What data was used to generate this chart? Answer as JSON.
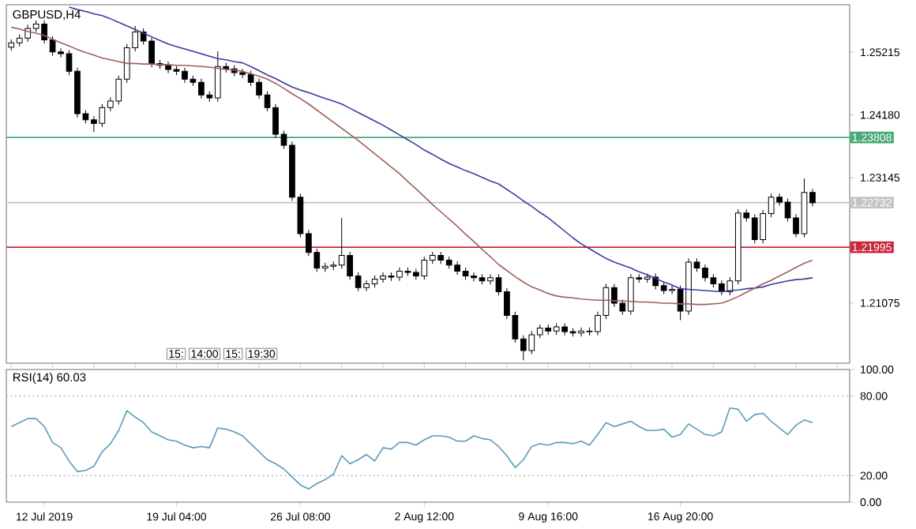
{
  "chart_data": [
    {
      "type": "candlestick",
      "title": "GBPUSD,H4",
      "ylim": [
        1.2008,
        1.26
      ],
      "yticks": [
        1.25215,
        {
          "value": 1.2418,
          "label": "1.24180"
        },
        1.23145,
        1.21075
      ],
      "tick_labels": "y",
      "categories": [
        null,
        null,
        null,
        null,
        null,
        null,
        null,
        null,
        null,
        null,
        null,
        null,
        null,
        null,
        null,
        null,
        null,
        null,
        null,
        null,
        null,
        null,
        null,
        null,
        null,
        null,
        null,
        null,
        null,
        null,
        null,
        null,
        null,
        null,
        null,
        null,
        null,
        null,
        null,
        null,
        null,
        null,
        null,
        null,
        null,
        null,
        null,
        null,
        null,
        null,
        null,
        null,
        null,
        null,
        null,
        null,
        null,
        null,
        null,
        null,
        null,
        null,
        null,
        null,
        null,
        null,
        null,
        null,
        null,
        null,
        null,
        null,
        null,
        null,
        null,
        null,
        null,
        null,
        null,
        null,
        null,
        null,
        null,
        null,
        null,
        null,
        null,
        null,
        null,
        null,
        null,
        null,
        null,
        null,
        null,
        null,
        null,
        null
      ],
      "series": [
        {
          "color": "#000000",
          "ohlc": [
            [
              1.253,
              1.2543,
              1.2524,
              1.2537
            ],
            [
              1.2537,
              1.2551,
              1.2531,
              1.2545
            ],
            [
              1.2545,
              1.2567,
              1.2539,
              1.2561
            ],
            [
              1.2561,
              1.2574,
              1.2555,
              1.2568
            ],
            [
              1.2568,
              1.2574,
              1.2536,
              1.2542
            ],
            [
              1.2542,
              1.2548,
              1.2516,
              1.2522
            ],
            [
              1.2522,
              1.2528,
              1.2513,
              1.2519
            ],
            [
              1.2519,
              1.2525,
              1.2484,
              1.249
            ],
            [
              1.249,
              1.2496,
              1.2414,
              1.242
            ],
            [
              1.242,
              1.2426,
              1.2404,
              1.241
            ],
            [
              1.241,
              1.2416,
              1.239,
              1.2404
            ],
            [
              1.2404,
              1.2436,
              1.2398,
              1.243
            ],
            [
              1.243,
              1.2447,
              1.2424,
              1.2441
            ],
            [
              1.2441,
              1.2483,
              1.2435,
              1.2477
            ],
            [
              1.2477,
              1.2535,
              1.2471,
              1.2529
            ],
            [
              1.2529,
              1.2565,
              1.2523,
              1.2555
            ],
            [
              1.2555,
              1.2561,
              1.2534,
              1.254
            ],
            [
              1.254,
              1.2546,
              1.2497,
              1.2503
            ],
            [
              1.2503,
              1.2509,
              1.2494,
              1.25
            ],
            [
              1.25,
              1.2506,
              1.2487,
              1.2493
            ],
            [
              1.2493,
              1.2499,
              1.2484,
              1.249
            ],
            [
              1.249,
              1.2496,
              1.2471,
              1.2477
            ],
            [
              1.2477,
              1.2483,
              1.2466,
              1.2472
            ],
            [
              1.2472,
              1.2478,
              1.2445,
              1.2451
            ],
            [
              1.2451,
              1.2457,
              1.244,
              1.2446
            ],
            [
              1.2446,
              1.2523,
              1.244,
              1.2498
            ],
            [
              1.2498,
              1.2504,
              1.2488,
              1.2494
            ],
            [
              1.2494,
              1.25,
              1.2482,
              1.2488
            ],
            [
              1.2488,
              1.2494,
              1.2479,
              1.2485
            ],
            [
              1.2485,
              1.2491,
              1.2466,
              1.2472
            ],
            [
              1.2472,
              1.2478,
              1.2445,
              1.2451
            ],
            [
              1.2451,
              1.2457,
              1.2424,
              1.243
            ],
            [
              1.243,
              1.2436,
              1.238,
              1.2386
            ],
            [
              1.2386,
              1.2392,
              1.2362,
              1.2368
            ],
            [
              1.2368,
              1.2374,
              1.2276,
              1.2282
            ],
            [
              1.2282,
              1.2288,
              1.2216,
              1.2222
            ],
            [
              1.2222,
              1.2228,
              1.2185,
              1.2191
            ],
            [
              1.2191,
              1.2197,
              1.2159,
              1.2165
            ],
            [
              1.2165,
              1.2174,
              1.2159,
              1.2168
            ],
            [
              1.2168,
              1.2176,
              1.2162,
              1.217
            ],
            [
              1.217,
              1.2248,
              1.2164,
              1.2186
            ],
            [
              1.2186,
              1.2192,
              1.2146,
              1.2152
            ],
            [
              1.2152,
              1.2158,
              1.2127,
              1.2133
            ],
            [
              1.2133,
              1.2145,
              1.2127,
              1.2139
            ],
            [
              1.2139,
              1.2153,
              1.2133,
              1.2147
            ],
            [
              1.2147,
              1.2158,
              1.2141,
              1.2152
            ],
            [
              1.2152,
              1.2158,
              1.2144,
              1.215
            ],
            [
              1.215,
              1.2166,
              1.2144,
              1.216
            ],
            [
              1.216,
              1.2166,
              1.2152,
              1.2158
            ],
            [
              1.2158,
              1.2164,
              1.2146,
              1.2152
            ],
            [
              1.2152,
              1.2184,
              1.2146,
              1.2178
            ],
            [
              1.2178,
              1.2192,
              1.2172,
              1.2186
            ],
            [
              1.2186,
              1.2192,
              1.2172,
              1.2178
            ],
            [
              1.2178,
              1.2184,
              1.2164,
              1.217
            ],
            [
              1.217,
              1.2176,
              1.2154,
              1.216
            ],
            [
              1.216,
              1.2166,
              1.2146,
              1.2152
            ],
            [
              1.2152,
              1.2158,
              1.2143,
              1.2149
            ],
            [
              1.2149,
              1.2155,
              1.2138,
              1.2144
            ],
            [
              1.2144,
              1.2155,
              1.2138,
              1.2149
            ],
            [
              1.2149,
              1.2155,
              1.212,
              1.2126
            ],
            [
              1.2126,
              1.2132,
              1.2081,
              1.2087
            ],
            [
              1.2087,
              1.2093,
              1.2042,
              1.2048
            ],
            [
              1.2048,
              1.2054,
              1.2013,
              1.2029
            ],
            [
              1.2029,
              1.2061,
              1.2023,
              1.2055
            ],
            [
              1.2055,
              1.2072,
              1.2049,
              1.2066
            ],
            [
              1.2066,
              1.2072,
              1.2055,
              1.2061
            ],
            [
              1.2061,
              1.2074,
              1.2055,
              1.2068
            ],
            [
              1.2068,
              1.2074,
              1.2054,
              1.206
            ],
            [
              1.206,
              1.2066,
              1.2052,
              1.2058
            ],
            [
              1.2058,
              1.2067,
              1.2052,
              1.2061
            ],
            [
              1.2061,
              1.2067,
              1.2054,
              1.206
            ],
            [
              1.206,
              1.2093,
              1.2054,
              1.2087
            ],
            [
              1.2087,
              1.2139,
              1.2081,
              1.2133
            ],
            [
              1.2133,
              1.2139,
              1.2101,
              1.2107
            ],
            [
              1.2107,
              1.2113,
              1.2088,
              1.2094
            ],
            [
              1.2094,
              1.2155,
              1.2088,
              1.2149
            ],
            [
              1.2149,
              1.2155,
              1.2141,
              1.2147
            ],
            [
              1.2147,
              1.2156,
              1.2141,
              1.215
            ],
            [
              1.215,
              1.2156,
              1.213,
              1.2136
            ],
            [
              1.2136,
              1.2142,
              1.2122,
              1.2128
            ],
            [
              1.2128,
              1.2136,
              1.2122,
              1.213
            ],
            [
              1.213,
              1.2136,
              1.2079,
              1.2094
            ],
            [
              1.2094,
              1.2181,
              1.2088,
              1.2175
            ],
            [
              1.2175,
              1.2181,
              1.2159,
              1.2165
            ],
            [
              1.2165,
              1.2171,
              1.2143,
              1.2149
            ],
            [
              1.2149,
              1.2155,
              1.2133,
              1.2139
            ],
            [
              1.2139,
              1.2145,
              1.212,
              1.2126
            ],
            [
              1.2126,
              1.215,
              1.212,
              1.2144
            ],
            [
              1.2144,
              1.2262,
              1.2138,
              1.2256
            ],
            [
              1.2256,
              1.2262,
              1.2242,
              1.2248
            ],
            [
              1.2248,
              1.2254,
              1.2206,
              1.2212
            ],
            [
              1.2212,
              1.2261,
              1.2206,
              1.2255
            ],
            [
              1.2255,
              1.2288,
              1.2249,
              1.2282
            ],
            [
              1.2282,
              1.2288,
              1.2268,
              1.2274
            ],
            [
              1.2274,
              1.228,
              1.2242,
              1.2248
            ],
            [
              1.2248,
              1.2254,
              1.2216,
              1.2222
            ],
            [
              1.2222,
              1.2313,
              1.2216,
              1.229
            ],
            [
              1.229,
              1.2296,
              1.2267,
              1.2273
            ]
          ]
        },
        {
          "type": "line",
          "color": "#3c3c9c",
          "values": [
            null,
            null,
            null,
            null,
            null,
            null,
            null,
            1.2596,
            1.2592,
            1.2589,
            1.2585,
            1.2582,
            1.2577,
            1.2571,
            1.2565,
            1.2559,
            1.2553,
            1.2547,
            1.2541,
            1.2535,
            1.2531,
            1.2527,
            1.2523,
            1.2519,
            1.2515,
            1.2511,
            1.2509,
            1.2506,
            1.2504,
            1.2498,
            1.2491,
            1.2484,
            1.2478,
            1.2471,
            1.2464,
            1.2459,
            1.2455,
            1.245,
            1.2445,
            1.2441,
            1.2436,
            1.2429,
            1.2422,
            1.2415,
            1.2408,
            1.2401,
            1.2393,
            1.2385,
            1.2377,
            1.2369,
            1.236,
            1.2353,
            1.2345,
            1.2338,
            1.2332,
            1.2326,
            1.2321,
            1.2315,
            1.2309,
            1.2304,
            1.2295,
            1.2286,
            1.2276,
            1.2267,
            1.2257,
            1.2248,
            1.2237,
            1.2226,
            1.2215,
            1.2205,
            1.2197,
            1.2189,
            1.2181,
            1.2175,
            1.217,
            1.2165,
            1.2159,
            1.2154,
            1.2148,
            1.2142,
            1.2137,
            1.2131,
            1.213,
            1.2129,
            1.2128,
            1.2127,
            1.2126,
            1.2128,
            1.2129,
            1.2131,
            1.2132,
            1.2134,
            1.2138,
            1.2141,
            1.2144,
            1.2146,
            1.2147,
            1.2149
          ]
        },
        {
          "type": "line",
          "color": "#a0605a",
          "values": [
            1.2563,
            1.256,
            1.2556,
            1.2553,
            1.2549,
            1.2543,
            1.2537,
            1.2532,
            1.2526,
            1.2521,
            1.2517,
            1.2512,
            1.2509,
            1.2506,
            1.2503,
            1.2503,
            1.2502,
            1.2502,
            1.2501,
            1.2501,
            1.25,
            1.25,
            1.2499,
            1.2498,
            1.2497,
            1.2495,
            1.2493,
            1.2492,
            1.249,
            1.2486,
            1.2482,
            1.2477,
            1.247,
            1.2462,
            1.2453,
            1.2445,
            1.2436,
            1.2426,
            1.2416,
            1.2406,
            1.2396,
            1.2386,
            1.2376,
            1.2365,
            1.2354,
            1.2343,
            1.2332,
            1.2321,
            1.2308,
            1.2296,
            1.2283,
            1.227,
            1.2258,
            1.2246,
            1.2234,
            1.2221,
            1.2209,
            1.2196,
            1.2184,
            1.2171,
            1.2161,
            1.2151,
            1.2142,
            1.2134,
            1.2129,
            1.2123,
            1.2119,
            1.2117,
            1.2116,
            1.2114,
            1.2113,
            1.2112,
            1.2112,
            1.2111,
            1.2111,
            1.211,
            1.2109,
            1.2109,
            1.2108,
            1.2107,
            1.2107,
            1.2106,
            1.2106,
            1.2105,
            1.2105,
            1.2106,
            1.2107,
            1.2112,
            1.2118,
            1.2125,
            1.2132,
            1.2139,
            1.2145,
            1.2152,
            1.2159,
            1.2166,
            1.2173,
            1.2178
          ]
        }
      ],
      "ref_lines": [
        {
          "axis": "y",
          "value": 1.23808,
          "label": "1.23808",
          "color": "#4aa878"
        },
        {
          "axis": "y",
          "value": 1.22732,
          "label": "1.22732",
          "color": "#c4c4c4"
        },
        {
          "axis": "y",
          "value": 1.21995,
          "label": "1.21995",
          "color": "#c8283c"
        }
      ],
      "annotations": [
        "15:",
        "14:00",
        "15:",
        "19:30"
      ]
    },
    {
      "type": "line",
      "title": "RSI(14) 60.03",
      "ylim": [
        0,
        100
      ],
      "categories": [
        null,
        null,
        null,
        null,
        "12 Jul 2019",
        null,
        null,
        null,
        null,
        null,
        null,
        null,
        null,
        null,
        null,
        null,
        null,
        null,
        null,
        null,
        "19 Jul 04:00",
        null,
        null,
        null,
        null,
        null,
        null,
        null,
        null,
        null,
        null,
        null,
        null,
        null,
        null,
        "26 Jul 08:00",
        null,
        null,
        null,
        null,
        null,
        null,
        null,
        null,
        null,
        null,
        null,
        null,
        null,
        null,
        "2 Aug 12:00",
        null,
        null,
        null,
        null,
        null,
        null,
        null,
        null,
        null,
        null,
        null,
        null,
        null,
        null,
        "9 Aug 16:00",
        null,
        null,
        null,
        null,
        null,
        null,
        null,
        null,
        null,
        null,
        null,
        null,
        null,
        null,
        null,
        "16 Aug 20:00",
        null,
        null,
        null,
        null,
        null,
        null,
        null,
        null,
        null,
        null,
        null,
        null,
        null,
        null,
        null,
        null
      ],
      "yticks": [
        {
          "value": 0,
          "label": "0.00"
        },
        {
          "value": 20,
          "label": "20.00"
        },
        {
          "value": 80,
          "label": "80.00"
        },
        {
          "value": 100,
          "label": "100.00"
        }
      ],
      "series": [
        {
          "color": "#5b9bb8",
          "values": [
            57,
            60,
            63,
            63,
            57,
            45,
            41,
            31,
            23,
            24,
            27,
            38,
            44,
            54,
            69,
            64,
            60,
            53,
            50,
            47,
            46,
            43,
            41,
            42,
            41,
            56,
            55,
            53,
            50,
            44,
            38,
            32,
            29,
            25,
            19,
            13,
            10,
            14,
            17,
            21,
            35,
            29,
            32,
            36,
            31,
            41,
            40,
            45,
            45,
            43,
            47,
            50,
            50,
            49,
            46,
            46,
            50,
            48,
            47,
            42,
            35,
            26,
            32,
            42,
            44,
            43,
            45,
            45,
            44,
            46,
            43,
            51,
            60,
            57,
            59,
            61,
            57,
            54,
            54,
            55,
            49,
            51,
            59,
            55,
            51,
            50,
            53,
            71,
            70,
            61,
            66,
            67,
            61,
            56,
            51,
            58,
            62,
            60
          ]
        }
      ],
      "ref_lines": [
        {
          "axis": "y",
          "value": 80,
          "color": "#b4b4b4",
          "line_style": "dotted"
        },
        {
          "axis": "y",
          "value": 20,
          "color": "#b4b4b4",
          "line_style": "dotted"
        }
      ]
    }
  ]
}
